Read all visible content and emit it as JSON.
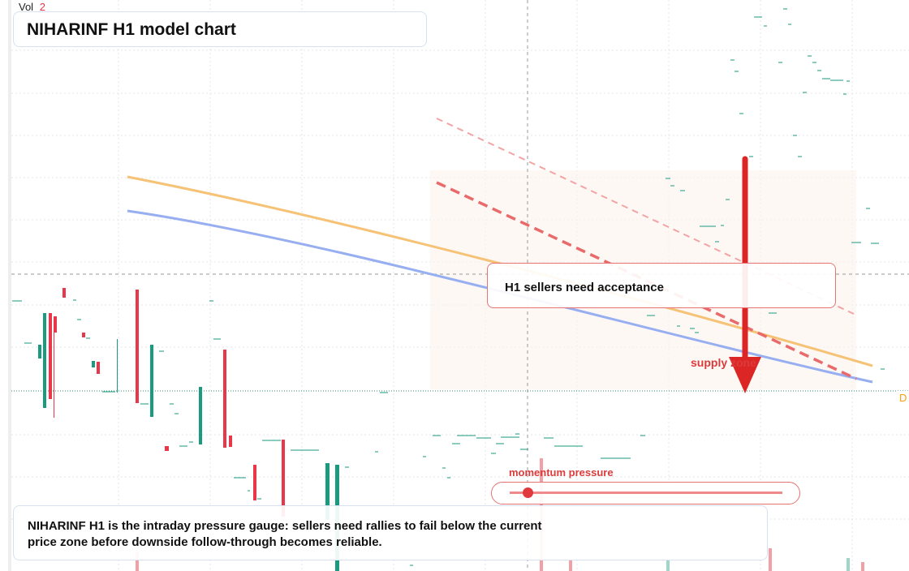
{
  "header": {
    "vol_label": "Vol",
    "vol_value": "2",
    "title": "NIHARINF H1 model chart"
  },
  "annotations": {
    "callout": "H1 sellers need acceptance",
    "zone_label": "supply zone",
    "price_tag": "D"
  },
  "gauge": {
    "label": "momentum pressure"
  },
  "footer": {
    "description": "NIHARINF H1 is the intraday pressure gauge: sellers need rallies to fail below the current price zone before downside follow-through becomes reliable."
  }
}
